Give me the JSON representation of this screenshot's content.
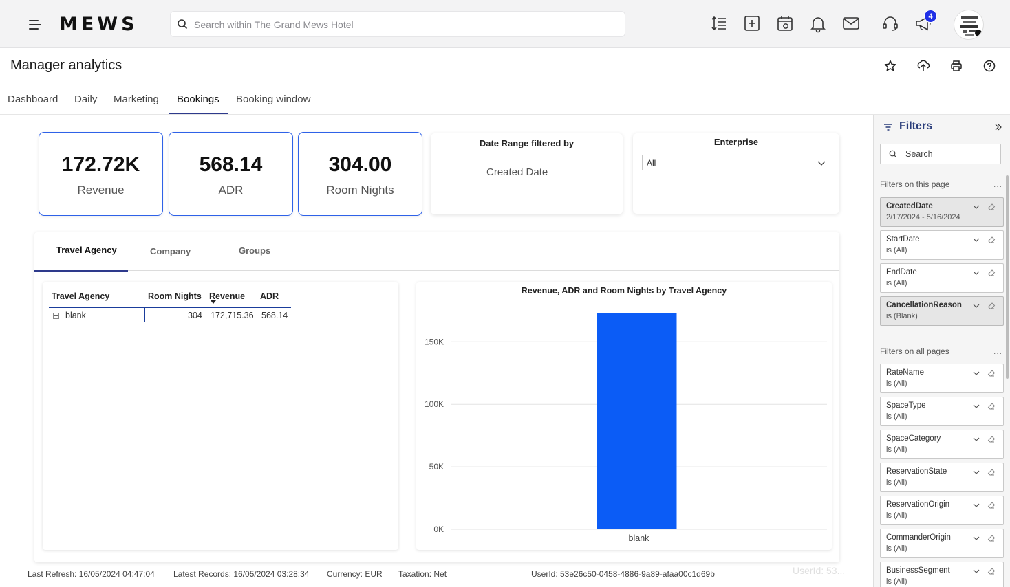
{
  "app": {
    "logo": "MEWS",
    "search_placeholder": "Search within The Grand Mews Hotel",
    "notification_count": "4",
    "top_icons": [
      "sort-height-icon",
      "add-square-icon",
      "calendar-view-icon",
      "bell-icon",
      "mail-icon",
      "support-headset-icon",
      "megaphone-icon"
    ]
  },
  "page": {
    "title": "Manager analytics",
    "tools": [
      "star-icon",
      "share-upload-icon",
      "print-icon",
      "help-icon"
    ],
    "tabs": [
      {
        "label": "Dashboard",
        "active": false
      },
      {
        "label": "Daily",
        "active": false
      },
      {
        "label": "Marketing",
        "active": false
      },
      {
        "label": "Bookings",
        "active": true
      },
      {
        "label": "Booking window",
        "active": false
      }
    ]
  },
  "kpis": [
    {
      "value": "172.72K",
      "label": "Revenue"
    },
    {
      "value": "568.14",
      "label": "ADR"
    },
    {
      "value": "304.00",
      "label": "Room Nights"
    }
  ],
  "date_range": {
    "title": "Date Range filtered by",
    "value": "Created Date"
  },
  "enterprise": {
    "title": "Enterprise",
    "selected": "All"
  },
  "subtabs": [
    {
      "label": "Travel Agency",
      "active": true
    },
    {
      "label": "Company",
      "active": false
    },
    {
      "label": "Groups",
      "active": false
    }
  ],
  "matrix": {
    "columns": [
      "Travel Agency",
      "Room Nights",
      "Revenue",
      "ADR"
    ],
    "rows": [
      {
        "name": "blank",
        "room_nights": "304",
        "revenue": "172,715.36",
        "adr": "568.14"
      }
    ]
  },
  "chart_data": {
    "type": "bar",
    "title": "Revenue, ADR and Room Nights by Travel Agency",
    "categories": [
      "blank"
    ],
    "series": [
      {
        "values": [
          172715.36
        ]
      }
    ],
    "ylim": [
      0,
      172715.36
    ],
    "yticks": [
      0,
      50000,
      100000,
      150000
    ],
    "ytick_labels": [
      "0K",
      "50K",
      "100K",
      "150K"
    ],
    "grid": true,
    "bar_color": "#0b5cf6"
  },
  "footer": {
    "last_refresh": "Last Refresh: 16/05/2024 04:47:04",
    "latest_records": "Latest Records: 16/05/2024 03:28:34",
    "currency": "Currency: EUR",
    "taxation": "Taxation: Net",
    "user_id": "UserId: 53e26c50-0458-4886-9a89-afaa00c1d69b",
    "user_id_ghost": "UserId: 53..."
  },
  "filters": {
    "title": "Filters",
    "search_placeholder": "Search",
    "this_page_label": "Filters on this page",
    "all_pages_label": "Filters on all pages",
    "more": "...",
    "this_page": [
      {
        "name": "CreatedDate",
        "value": "2/17/2024 - 5/16/2024",
        "applied": true
      },
      {
        "name": "StartDate",
        "value": "is (All)",
        "applied": false
      },
      {
        "name": "EndDate",
        "value": "is (All)",
        "applied": false
      },
      {
        "name": "CancellationReason",
        "value": "is (Blank)",
        "applied": true
      }
    ],
    "all_pages": [
      {
        "name": "RateName",
        "value": "is (All)",
        "applied": false
      },
      {
        "name": "SpaceType",
        "value": "is (All)",
        "applied": false
      },
      {
        "name": "SpaceCategory",
        "value": "is (All)",
        "applied": false
      },
      {
        "name": "ReservationState",
        "value": "is (All)",
        "applied": false
      },
      {
        "name": "ReservationOrigin",
        "value": "is (All)",
        "applied": false
      },
      {
        "name": "CommanderOrigin",
        "value": "is (All)",
        "applied": false
      },
      {
        "name": "BusinessSegment",
        "value": "is (All)",
        "applied": false
      }
    ]
  }
}
